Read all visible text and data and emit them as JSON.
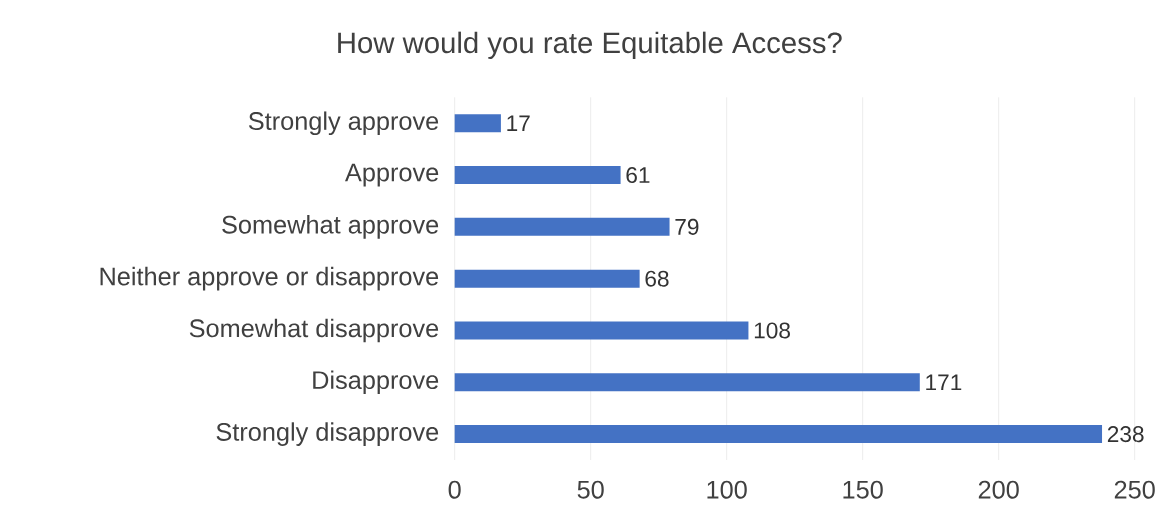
{
  "chart_data": {
    "type": "bar",
    "orientation": "horizontal",
    "title": "How would you rate Equitable Access?",
    "categories": [
      "Strongly approve",
      "Approve",
      "Somewhat approve",
      "Neither approve or disapprove",
      "Somewhat disapprove",
      "Disapprove",
      "Strongly disapprove"
    ],
    "values": [
      17,
      61,
      79,
      68,
      108,
      171,
      238
    ],
    "color": "#4472c4",
    "xlim": [
      0,
      250
    ],
    "xticks": [
      0,
      50,
      100,
      150,
      200,
      250
    ],
    "grid": "x",
    "data_labels": true
  }
}
